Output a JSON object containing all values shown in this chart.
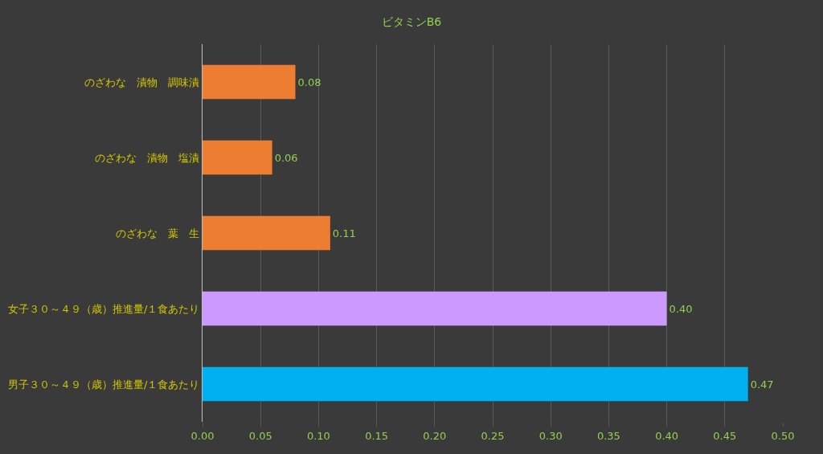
{
  "chart_data": {
    "type": "bar",
    "orientation": "horizontal",
    "title": "ビタミンB6",
    "categories": [
      "のざわな　漬物　調味漬",
      "のざわな　漬物　塩漬",
      "のざわな　葉　生",
      "女子３０～４９（歳）推進量/１食あたり",
      "男子３０～４９（歳）推進量/１食あたり"
    ],
    "values": [
      0.08,
      0.06,
      0.11,
      0.4,
      0.47
    ],
    "colors": [
      "#ed7d31",
      "#ed7d31",
      "#ed7d31",
      "#cc99ff",
      "#00b0f0"
    ],
    "xlim": [
      0,
      0.5
    ],
    "xticks": [
      {
        "value": 0,
        "label": "0.00"
      },
      {
        "value": 0.05,
        "label": "0.05"
      },
      {
        "value": 0.1,
        "label": "0.10"
      },
      {
        "value": 0.15,
        "label": "0.15"
      },
      {
        "value": 0.2,
        "label": "0.20"
      },
      {
        "value": 0.25,
        "label": "0.25"
      },
      {
        "value": 0.3,
        "label": "0.30"
      },
      {
        "value": 0.35,
        "label": "0.35"
      },
      {
        "value": 0.4,
        "label": "0.40"
      },
      {
        "value": 0.45,
        "label": "0.45"
      },
      {
        "value": 0.5,
        "label": "0.50"
      }
    ],
    "value_labels": [
      "0.08",
      "0.06",
      "0.11",
      "0.40",
      "0.47"
    ],
    "grid": "x"
  }
}
